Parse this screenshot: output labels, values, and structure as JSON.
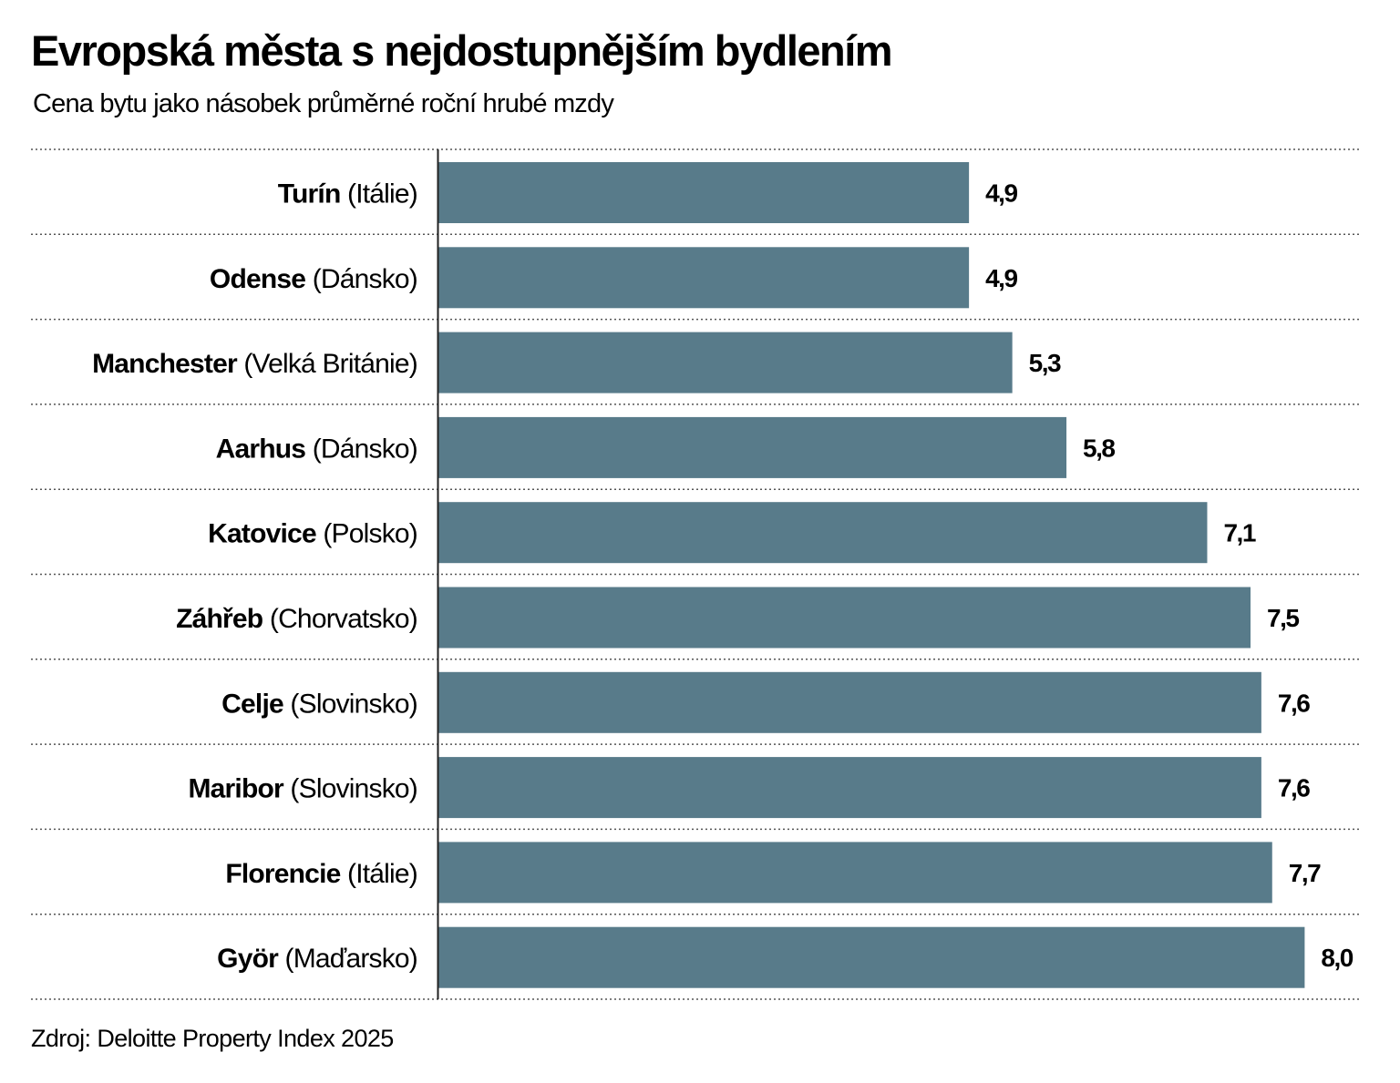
{
  "title": "Evropská města s nejdostupnějším bydlením",
  "subtitle": "Cena bytu jako násobek průměrné roční hrubé mzdy",
  "source": "Zdroj: Deloitte Property Index 2025",
  "chart_data": {
    "type": "bar",
    "orientation": "horizontal",
    "title": "Evropská města s nejdostupnějším bydlením",
    "subtitle": "Cena bytu jako násobek průměrné roční hrubé mzdy",
    "categories": [
      {
        "city": "Turín",
        "country": "(Itálie)"
      },
      {
        "city": "Odense",
        "country": "(Dánsko)"
      },
      {
        "city": "Manchester",
        "country": "(Velká Británie)"
      },
      {
        "city": "Aarhus",
        "country": "(Dánsko)"
      },
      {
        "city": "Katovice",
        "country": "(Polsko)"
      },
      {
        "city": "Záhřeb",
        "country": "(Chorvatsko)"
      },
      {
        "city": "Celje",
        "country": "(Slovinsko)"
      },
      {
        "city": "Maribor",
        "country": "(Slovinsko)"
      },
      {
        "city": "Florencie",
        "country": "(Itálie)"
      },
      {
        "city": "Györ",
        "country": "(Maďarsko)"
      }
    ],
    "values": [
      4.9,
      4.9,
      5.3,
      5.8,
      7.1,
      7.5,
      7.6,
      7.6,
      7.7,
      8.0
    ],
    "value_labels": [
      "4,9",
      "4,9",
      "5,3",
      "5,8",
      "7,1",
      "7,5",
      "7,6",
      "7,6",
      "7,7",
      "8,0"
    ],
    "xlim": [
      0,
      8.5
    ],
    "grid": "dotted row separators",
    "bar_color": "#587b8a"
  }
}
